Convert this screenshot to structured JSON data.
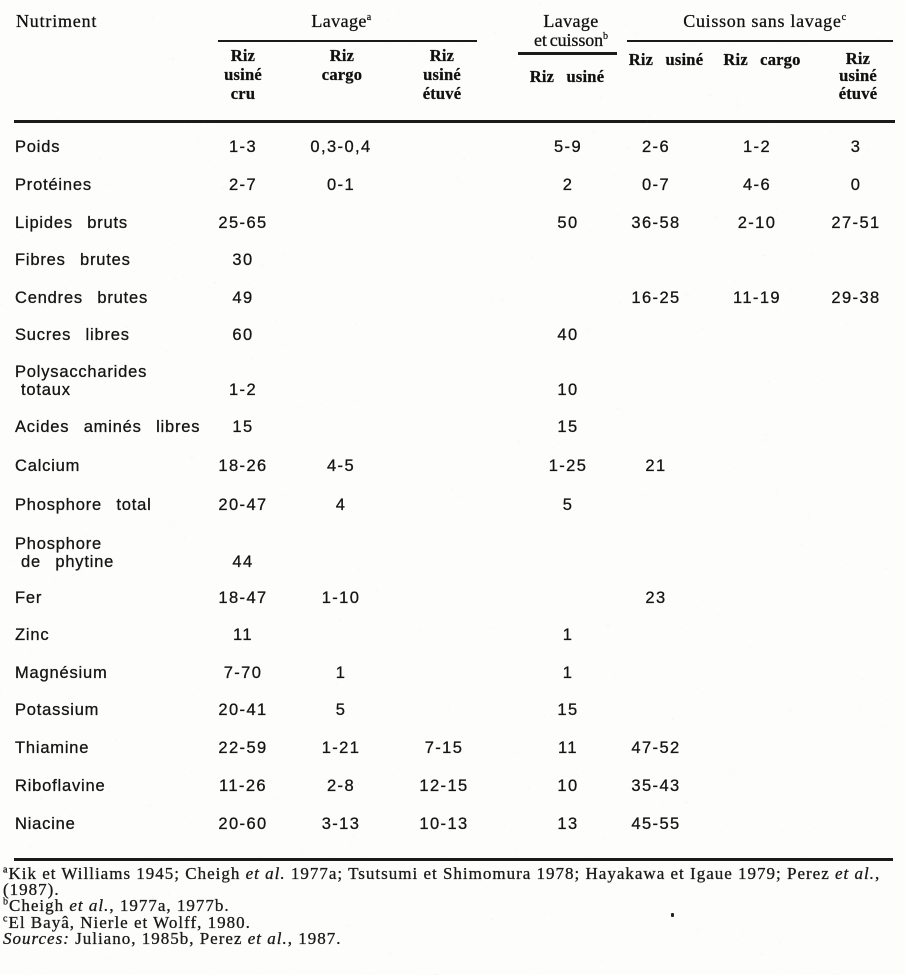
{
  "table": {
    "corner_header": "Nutriment",
    "groups": [
      {
        "lines": [
          "Lavage"
        ],
        "sup": "a"
      },
      {
        "lines": [
          "Lavage",
          "et cuisson"
        ],
        "sup": "b"
      },
      {
        "lines": [
          "Cuisson sans lavage"
        ],
        "sup": "c"
      }
    ],
    "columns": [
      {
        "group": "Lavage",
        "lines": [
          "Riz",
          "usiné",
          "cru"
        ]
      },
      {
        "group": "Lavage",
        "lines": [
          "Riz",
          "cargo"
        ]
      },
      {
        "group": "Lavage",
        "lines": [
          "Riz",
          "usiné",
          "étuvé"
        ]
      },
      {
        "group": "Lavage et cuisson",
        "lines": [
          "Riz usiné"
        ]
      },
      {
        "group": "Cuisson sans lavage",
        "lines": [
          "Riz usiné"
        ]
      },
      {
        "group": "Cuisson sans lavage",
        "lines": [
          "Riz cargo"
        ]
      },
      {
        "group": "Cuisson sans lavage",
        "lines": [
          "Riz",
          "usiné",
          "étuvé"
        ]
      }
    ],
    "rows": [
      {
        "label": [
          "Poids"
        ],
        "values": [
          "1-3",
          "0,3-0,4",
          "",
          "5-9",
          "2-6",
          "1-2",
          "3"
        ]
      },
      {
        "label": [
          "Protéines"
        ],
        "values": [
          "2-7",
          "0-1",
          "",
          "2",
          "0-7",
          "4-6",
          "0"
        ]
      },
      {
        "label": [
          "Lipides bruts"
        ],
        "values": [
          "25-65",
          "",
          "",
          "50",
          "36-58",
          "2-10",
          "27-51"
        ]
      },
      {
        "label": [
          "Fibres brutes"
        ],
        "values": [
          "30",
          "",
          "",
          "",
          "",
          "",
          ""
        ]
      },
      {
        "label": [
          "Cendres brutes"
        ],
        "values": [
          "49",
          "",
          "",
          "",
          "16-25",
          "11-19",
          "29-38"
        ]
      },
      {
        "label": [
          "Sucres libres"
        ],
        "values": [
          "60",
          "",
          "",
          "40",
          "",
          "",
          ""
        ]
      },
      {
        "label": [
          "Polysaccharides",
          "totaux"
        ],
        "values": [
          "1-2",
          "",
          "",
          "10",
          "",
          "",
          ""
        ]
      },
      {
        "label": [
          "Acides aminés libres"
        ],
        "values": [
          "15",
          "",
          "",
          "15",
          "",
          "",
          ""
        ]
      },
      {
        "label": [
          "Calcium"
        ],
        "values": [
          "18-26",
          "4-5",
          "",
          "1-25",
          "21",
          "",
          ""
        ]
      },
      {
        "label": [
          "Phosphore total"
        ],
        "values": [
          "20-47",
          "4",
          "",
          "5",
          "",
          "",
          ""
        ]
      },
      {
        "label": [
          "Phosphore",
          "de phytine"
        ],
        "values": [
          "44",
          "",
          "",
          "",
          "",
          "",
          ""
        ]
      },
      {
        "label": [
          "Fer"
        ],
        "values": [
          "18-47",
          "1-10",
          "",
          "",
          "23",
          "",
          ""
        ]
      },
      {
        "label": [
          "Zinc"
        ],
        "values": [
          "11",
          "",
          "",
          "1",
          "",
          "",
          ""
        ]
      },
      {
        "label": [
          "Magnésium"
        ],
        "values": [
          "7-70",
          "1",
          "",
          "1",
          "",
          "",
          ""
        ]
      },
      {
        "label": [
          "Potassium"
        ],
        "values": [
          "20-41",
          "5",
          "",
          "15",
          "",
          "",
          ""
        ]
      },
      {
        "label": [
          "Thiamine"
        ],
        "values": [
          "22-59",
          "1-21",
          "7-15",
          "11",
          "47-52",
          "",
          ""
        ]
      },
      {
        "label": [
          "Riboflavine"
        ],
        "values": [
          "11-26",
          "2-8",
          "12-15",
          "10",
          "35-43",
          "",
          ""
        ]
      },
      {
        "label": [
          "Niacine"
        ],
        "values": [
          "20-60",
          "3-13",
          "10-13",
          "13",
          "45-55",
          "",
          ""
        ]
      }
    ]
  },
  "footnotes": [
    [
      {
        "sup": "a"
      },
      {
        "t": "Kik et Williams 1945; Cheigh "
      },
      {
        "t": "et al.",
        "i": 1
      },
      {
        "t": " 1977a; Tsutsumi et Shimomura 1978; Hayakawa et Igaue 1979; Perez "
      },
      {
        "t": "et al.",
        "i": 1
      },
      {
        "t": ","
      }
    ],
    [
      {
        "t": "(1987)."
      }
    ],
    [
      {
        "sup": "b"
      },
      {
        "t": "Cheigh "
      },
      {
        "t": "et al.",
        "i": 1
      },
      {
        "t": ", 1977a, 1977b."
      }
    ],
    [
      {
        "sup": "c"
      },
      {
        "t": "El Bayâ, Nierle et Wolff, 1980."
      }
    ],
    [
      {
        "t": "Sources:",
        "i": 1
      },
      {
        "t": " Juliano, 1985b, Perez "
      },
      {
        "t": "et al.",
        "i": 1
      },
      {
        "t": ", 1987."
      }
    ]
  ]
}
